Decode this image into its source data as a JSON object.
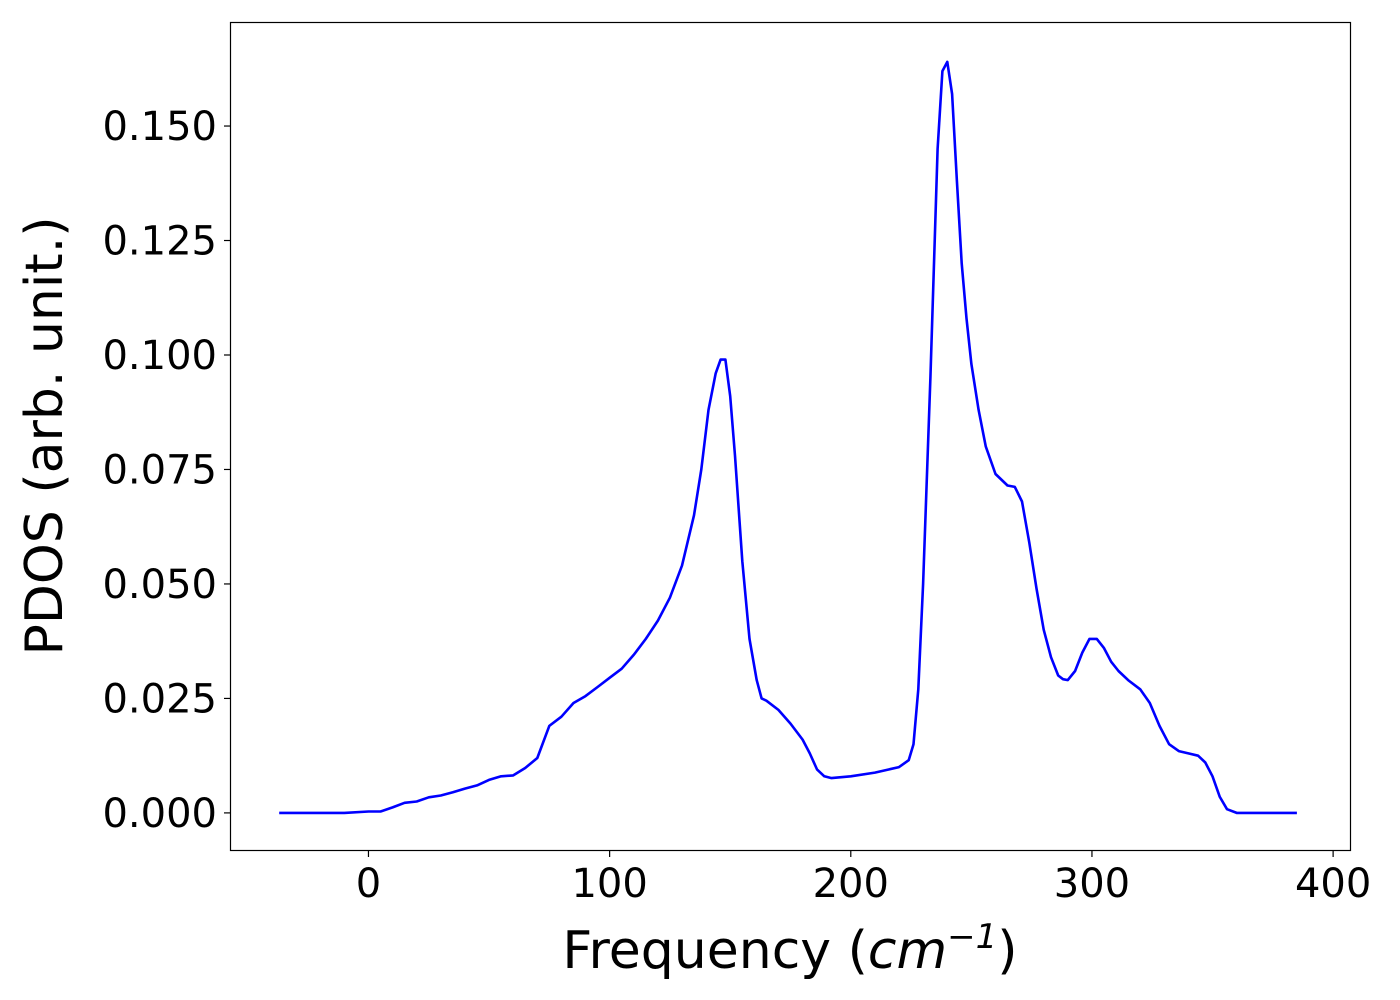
{
  "chart_data": {
    "type": "line",
    "title": "",
    "xlabel": "Frequency",
    "xlabel_unit_base": "cm",
    "xlabel_unit_exp": "−1",
    "ylabel": "PDOS (arb. unit.)",
    "xlim": [
      -57,
      407
    ],
    "ylim": [
      -0.0081,
      0.1725
    ],
    "xticks": [
      0,
      100,
      200,
      300,
      400
    ],
    "xtick_labels": [
      "0",
      "100",
      "200",
      "300",
      "400"
    ],
    "yticks": [
      0.0,
      0.025,
      0.05,
      0.075,
      0.1,
      0.125,
      0.15
    ],
    "ytick_labels": [
      "0.000",
      "0.025",
      "0.050",
      "0.075",
      "0.100",
      "0.125",
      "0.150"
    ],
    "grid": false,
    "legend": "none",
    "series": [
      {
        "color": "#0000ff",
        "x": [
          -37,
          -10,
          0,
          5,
          10,
          15,
          20,
          25,
          30,
          35,
          40,
          45,
          50,
          55,
          60,
          65,
          70,
          75,
          80,
          85,
          90,
          95,
          100,
          105,
          110,
          115,
          120,
          125,
          130,
          135,
          138,
          141,
          144,
          146,
          148,
          150,
          152,
          155,
          158,
          161,
          163,
          165,
          170,
          175,
          180,
          183,
          186,
          189,
          192,
          200,
          210,
          220,
          224,
          226,
          228,
          230,
          233,
          236,
          238,
          240,
          242,
          244,
          246,
          248,
          250,
          253,
          256,
          260,
          265,
          268,
          271,
          274,
          277,
          280,
          283,
          286,
          288,
          290,
          293,
          296,
          299,
          302,
          305,
          308,
          311,
          315,
          320,
          324,
          328,
          332,
          336,
          340,
          344,
          347,
          350,
          353,
          356,
          360,
          370,
          385
        ],
        "y": [
          0.0,
          0.0,
          0.0003,
          0.0003,
          0.0012,
          0.0022,
          0.0025,
          0.0034,
          0.0038,
          0.0045,
          0.0053,
          0.006,
          0.0072,
          0.008,
          0.0082,
          0.0098,
          0.012,
          0.019,
          0.021,
          0.024,
          0.0255,
          0.0275,
          0.0295,
          0.0315,
          0.0345,
          0.038,
          0.042,
          0.047,
          0.054,
          0.065,
          0.075,
          0.088,
          0.096,
          0.099,
          0.099,
          0.091,
          0.078,
          0.055,
          0.038,
          0.029,
          0.025,
          0.0245,
          0.0225,
          0.0195,
          0.016,
          0.013,
          0.0095,
          0.008,
          0.0076,
          0.008,
          0.0088,
          0.01,
          0.0115,
          0.015,
          0.027,
          0.05,
          0.095,
          0.145,
          0.162,
          0.164,
          0.157,
          0.138,
          0.12,
          0.108,
          0.098,
          0.088,
          0.08,
          0.074,
          0.0715,
          0.0712,
          0.068,
          0.059,
          0.049,
          0.04,
          0.034,
          0.03,
          0.0292,
          0.029,
          0.031,
          0.035,
          0.038,
          0.038,
          0.036,
          0.033,
          0.031,
          0.029,
          0.027,
          0.024,
          0.019,
          0.015,
          0.0135,
          0.013,
          0.0125,
          0.011,
          0.008,
          0.0035,
          0.0008,
          0.0,
          0.0,
          0.0
        ]
      }
    ]
  }
}
